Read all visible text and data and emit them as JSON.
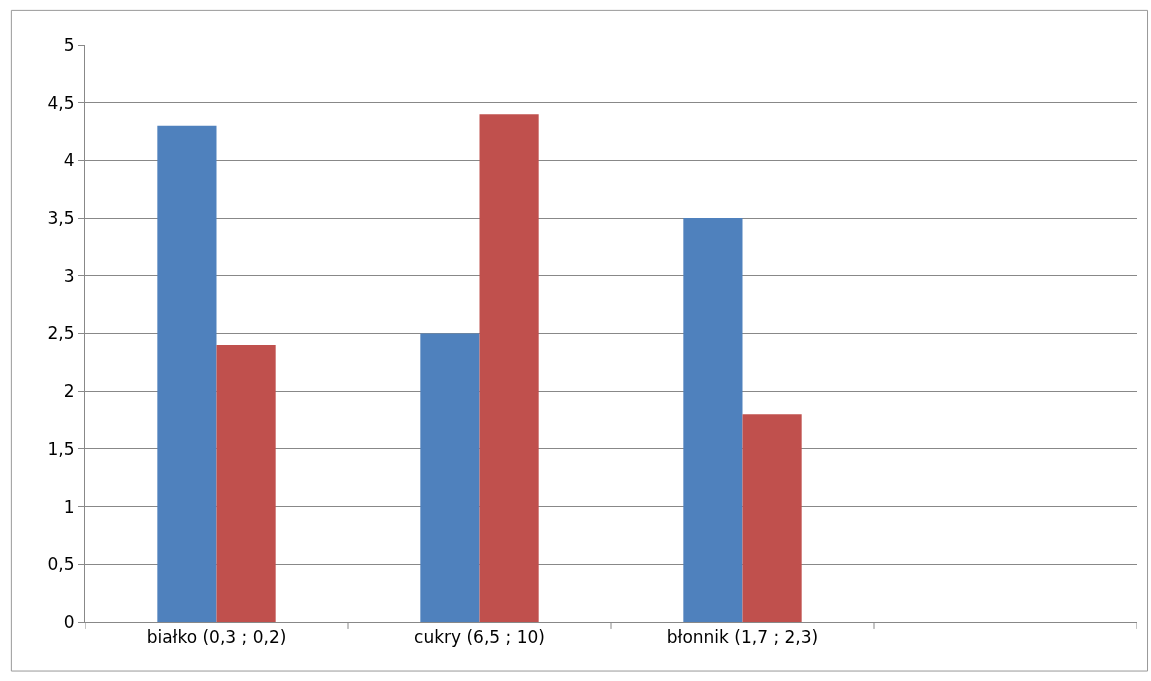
{
  "chart_data": {
    "type": "bar",
    "categories": [
      "białko (0,3 ; 0,2)",
      "cukry (6,5 ; 10)",
      "błonnik (1,7 ; 2,3)",
      null
    ],
    "series": [
      {
        "color": "#4f81bd",
        "values": [
          4.3,
          2.5,
          3.5,
          null
        ]
      },
      {
        "color": "#c0504d",
        "values": [
          2.4,
          4.4,
          1.8,
          null
        ]
      }
    ],
    "ylim": [
      0,
      5
    ],
    "yticks": [
      0,
      {
        "value": 0.5,
        "label": "0,5"
      },
      1,
      {
        "value": 1.5,
        "label": "1,5"
      },
      2,
      {
        "value": 2.5,
        "label": "2,5"
      },
      3,
      {
        "value": 3.5,
        "label": "3,5"
      },
      4,
      {
        "value": 4.5,
        "label": "4,5"
      },
      5
    ],
    "grid": "y"
  }
}
